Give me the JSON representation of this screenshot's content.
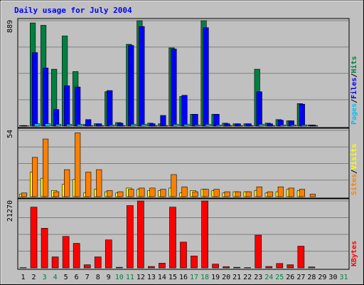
{
  "chart_data": {
    "type": "bar",
    "title": "Daily usage for July 2004",
    "x": [
      "1",
      "2",
      "3",
      "4",
      "5",
      "6",
      "7",
      "8",
      "9",
      "10",
      "11",
      "12",
      "13",
      "14",
      "15",
      "16",
      "17",
      "18",
      "19",
      "20",
      "21",
      "22",
      "23",
      "24",
      "25",
      "26",
      "27",
      "28",
      "29",
      "30",
      "31"
    ],
    "weekend_days": [
      "3",
      "4",
      "10",
      "11",
      "17",
      "18",
      "24",
      "25",
      "31"
    ],
    "colors": {
      "title": "#0000ff",
      "hits": "#008040",
      "files": "#0000ff",
      "pages": "#00c0ff",
      "visits": "#ffff00",
      "sites": "#ff8000",
      "kbytes": "#ff0000",
      "weekday_label": "#000000",
      "weekend_label": "#008040",
      "plot_bg": "#c0c0c0"
    },
    "panels": [
      {
        "id": "hits-files-pages",
        "max_label": "889",
        "ylim": [
          0,
          889
        ],
        "legend": [
          "Pages",
          "Files",
          "Hits"
        ],
        "series": [
          {
            "name": "Hits",
            "color": "#008040",
            "values": [
              5,
              870,
              850,
              480,
              760,
              460,
              15,
              20,
              290,
              30,
              690,
              889,
              25,
              20,
              660,
              250,
              100,
              889,
              100,
              25,
              20,
              20,
              480,
              25,
              55,
              45,
              190,
              10,
              0,
              0,
              0
            ]
          },
          {
            "name": "Files",
            "color": "#0000ff",
            "values": [
              5,
              620,
              490,
              140,
              340,
              330,
              55,
              20,
              300,
              25,
              680,
              840,
              20,
              90,
              650,
              260,
              100,
              830,
              100,
              20,
              20,
              20,
              290,
              20,
              50,
              45,
              185,
              10,
              0,
              0,
              0
            ]
          },
          {
            "name": "Pages",
            "color": "#00c0ff",
            "values": [
              2,
              20,
              20,
              15,
              15,
              15,
              5,
              5,
              10,
              5,
              15,
              15,
              5,
              5,
              15,
              15,
              10,
              15,
              10,
              5,
              5,
              5,
              15,
              5,
              10,
              10,
              10,
              5,
              0,
              0,
              0
            ]
          }
        ]
      },
      {
        "id": "visits-sites",
        "max_label": "54",
        "ylim": [
          0,
          54
        ],
        "legend": [
          "Sites",
          "Visits"
        ],
        "series": [
          {
            "name": "Visits",
            "color": "#ffff00",
            "values": [
              2,
              20,
              15,
              5,
              10,
              14,
              3,
              6,
              4,
              3,
              7,
              6,
              5,
              5,
              7,
              3,
              5,
              6,
              5,
              3,
              4,
              4,
              5,
              3,
              4,
              6,
              5,
              0,
              0,
              0,
              0
            ]
          },
          {
            "name": "Sites",
            "color": "#ff8000",
            "values": [
              3,
              32,
              47,
              4,
              22,
              52,
              20,
              22,
              5,
              4,
              6,
              7,
              7,
              6,
              18,
              8,
              4,
              6,
              6,
              4,
              4,
              4,
              8,
              4,
              8,
              7,
              6,
              2,
              0,
              0,
              0
            ]
          }
        ]
      },
      {
        "id": "kbytes",
        "max_label": "21270",
        "ylim": [
          0,
          21270
        ],
        "legend": [
          "KBytes"
        ],
        "series": [
          {
            "name": "KBytes",
            "color": "#ff0000",
            "values": [
              100,
              19300,
              12600,
              3500,
              10000,
              7800,
              1000,
              3500,
              8900,
              200,
              19800,
              21270,
              450,
              1500,
              19300,
              8200,
              3800,
              21270,
              1200,
              400,
              200,
              100,
              10400,
              450,
              1400,
              1000,
              6900,
              300,
              0,
              0,
              0
            ]
          }
        ]
      }
    ]
  }
}
